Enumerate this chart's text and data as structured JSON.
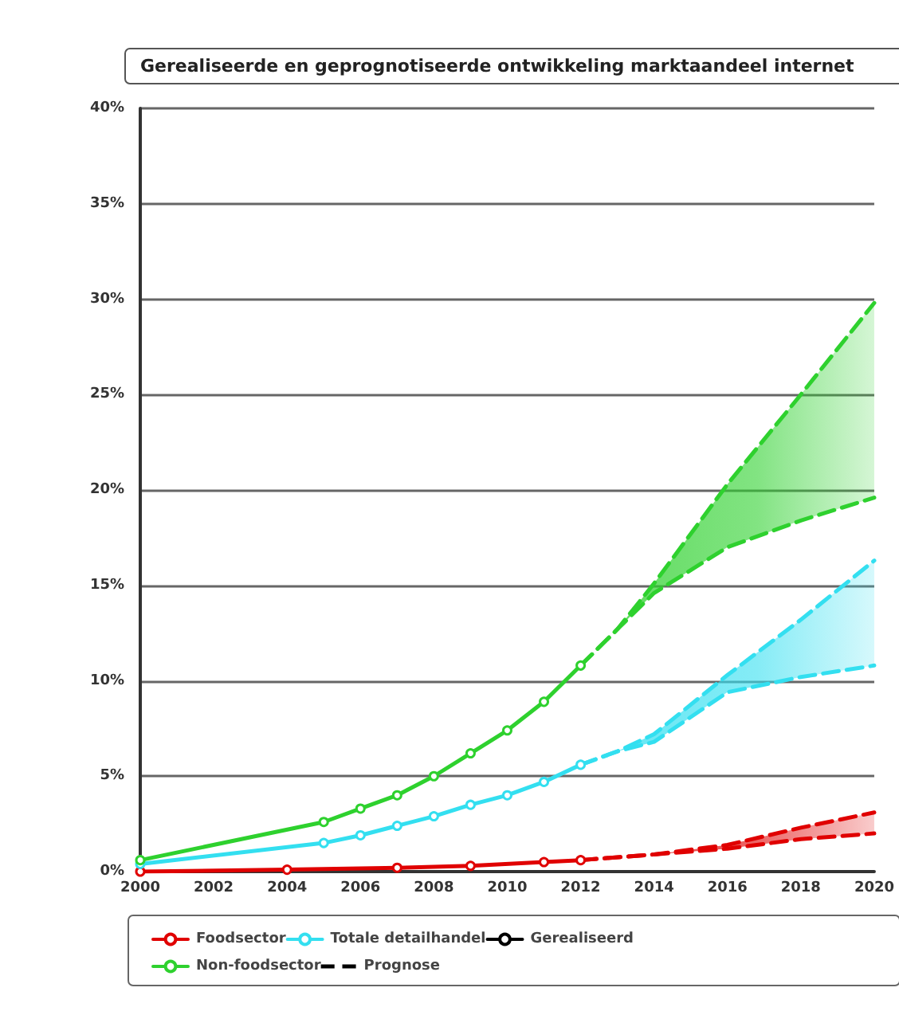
{
  "chart_data": {
    "type": "line",
    "title": "Gerealiseerde en geprognotiseerde ontwikkeling marktaandeel internet",
    "xlim": [
      2000,
      2020
    ],
    "xticks": [
      2000,
      2002,
      2004,
      2006,
      2008,
      2010,
      2012,
      2014,
      2016,
      2018,
      2020
    ],
    "ylim": [
      0,
      40
    ],
    "yticks": [
      {
        "value": 0,
        "label": "0%"
      },
      {
        "value": 5,
        "label": "5%"
      },
      {
        "value": 10,
        "label": "10%"
      },
      {
        "value": 15,
        "label": "15%"
      },
      {
        "value": 20,
        "label": "20%"
      },
      {
        "value": 25,
        "label": "25%"
      },
      {
        "value": 30,
        "label": "30%"
      },
      {
        "value": 35,
        "label": "35%"
      },
      {
        "value": 40,
        "label": "40%"
      }
    ],
    "grid": "y",
    "legend": "bottom",
    "series": [
      {
        "name": "Foodsector",
        "color": "#e00000",
        "marker": "circle",
        "line_style": "solid",
        "x": [
          2000,
          2004,
          2007,
          2009,
          2011,
          2012
        ],
        "values": [
          0.0,
          0.1,
          0.2,
          0.3,
          0.5,
          0.6
        ]
      },
      {
        "name": "Totale detailhandel",
        "color": "#33dff0",
        "marker": "circle",
        "line_style": "solid",
        "x": [
          2000,
          2005,
          2006,
          2007,
          2008,
          2009,
          2010,
          2011,
          2012
        ],
        "values": [
          0.4,
          1.5,
          1.9,
          2.4,
          2.9,
          3.5,
          4.0,
          4.7,
          5.6
        ]
      },
      {
        "name": "Gerealiseerd",
        "color": "#000000",
        "marker": "circle",
        "line_style": "solid"
      },
      {
        "name": "Non-foodsector",
        "color": "#2ed12e",
        "marker": "circle",
        "line_style": "solid",
        "x": [
          2000,
          2005,
          2006,
          2007,
          2008,
          2009,
          2010,
          2011,
          2012
        ],
        "values": [
          0.6,
          2.6,
          3.3,
          4.0,
          5.0,
          6.2,
          7.4,
          8.9,
          10.8
        ]
      },
      {
        "name": "Prognose",
        "color": "#000000",
        "marker": "none",
        "line_style": "dashed"
      },
      {
        "color": "#e00000",
        "marker": "none",
        "line_style": "dashed",
        "x": [
          2012,
          2014,
          2016,
          2018,
          2020
        ],
        "values": [
          0.6,
          0.9,
          1.4,
          2.3,
          3.1
        ],
        "lower": [
          0.6,
          0.9,
          1.2,
          1.7,
          2.0
        ],
        "upper": [
          0.6,
          0.9,
          1.4,
          2.3,
          3.1
        ]
      },
      {
        "color": "#e00000",
        "marker": "none",
        "line_style": "dashed",
        "x": [
          2012,
          2014,
          2016,
          2018,
          2020
        ],
        "values": [
          0.6,
          0.9,
          1.2,
          1.7,
          2.0
        ]
      },
      {
        "color": "#33dff0",
        "marker": "none",
        "line_style": "dashed",
        "x": [
          2012,
          2013,
          2014,
          2016,
          2018,
          2020
        ],
        "values": [
          5.6,
          6.3,
          7.2,
          10.3,
          13.2,
          16.3
        ],
        "lower": [
          5.6,
          6.3,
          6.8,
          9.4,
          10.2,
          10.8
        ],
        "upper": [
          5.6,
          6.3,
          7.2,
          10.3,
          13.2,
          16.3
        ]
      },
      {
        "color": "#33dff0",
        "marker": "none",
        "line_style": "dashed",
        "x": [
          2012,
          2013,
          2014,
          2016,
          2018,
          2020
        ],
        "values": [
          5.6,
          6.3,
          6.8,
          9.4,
          10.2,
          10.8
        ]
      },
      {
        "color": "#2ed12e",
        "marker": "none",
        "line_style": "dashed",
        "x": [
          2012,
          2013,
          2014,
          2016,
          2018,
          2020
        ],
        "values": [
          10.8,
          12.7,
          15.1,
          20.3,
          25.0,
          29.8
        ],
        "lower": [
          10.8,
          12.7,
          14.6,
          17.0,
          18.4,
          19.6
        ],
        "upper": [
          10.8,
          12.7,
          15.1,
          20.3,
          25.0,
          29.8
        ]
      },
      {
        "color": "#2ed12e",
        "marker": "none",
        "line_style": "dashed",
        "x": [
          2012,
          2013,
          2014,
          2016,
          2018,
          2020
        ],
        "values": [
          10.8,
          12.7,
          14.6,
          17.0,
          18.4,
          19.6
        ]
      }
    ]
  }
}
